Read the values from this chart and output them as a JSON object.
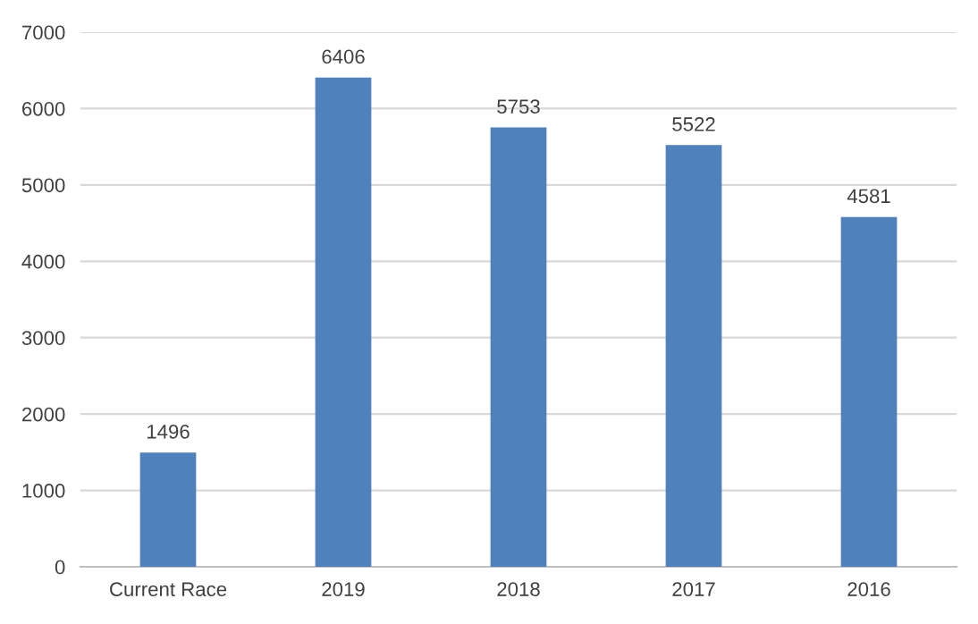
{
  "chart_data": {
    "type": "bar",
    "categories": [
      "Current Race",
      "2019",
      "2018",
      "2017",
      "2016"
    ],
    "values": [
      1496,
      6406,
      5753,
      5522,
      4581
    ],
    "color": "#4f81bd",
    "ylim": [
      0,
      7000
    ],
    "yticks": [
      0,
      1000,
      2000,
      3000,
      4000,
      5000,
      6000,
      7000
    ],
    "grid": "y",
    "data_labels": true
  }
}
